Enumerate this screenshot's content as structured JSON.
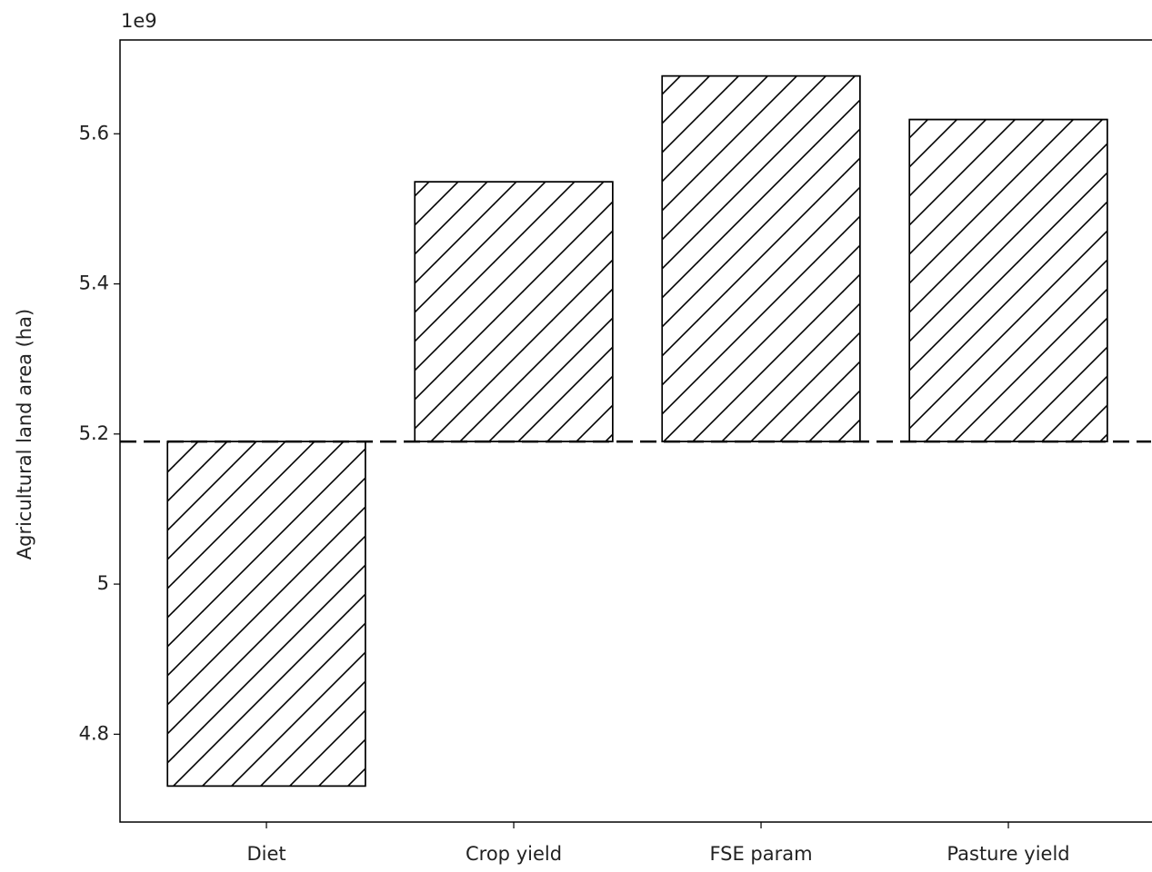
{
  "chart_data": {
    "type": "bar",
    "y_label": "Agricultural land area (ha)",
    "y_offset_label": "1e9",
    "categories": [
      "Diet",
      "Crop yield",
      "FSE param",
      "Pasture yield"
    ],
    "values": [
      4.731,
      5.536,
      5.677,
      5.619
    ],
    "baseline": 5.19,
    "color": "#ffffff",
    "edgecolor": "#000000",
    "hatch": "/",
    "ylim": [
      4.683,
      5.725
    ],
    "yticks": [
      4.8,
      5.0,
      5.2,
      5.4,
      5.6
    ],
    "grid": false
  }
}
